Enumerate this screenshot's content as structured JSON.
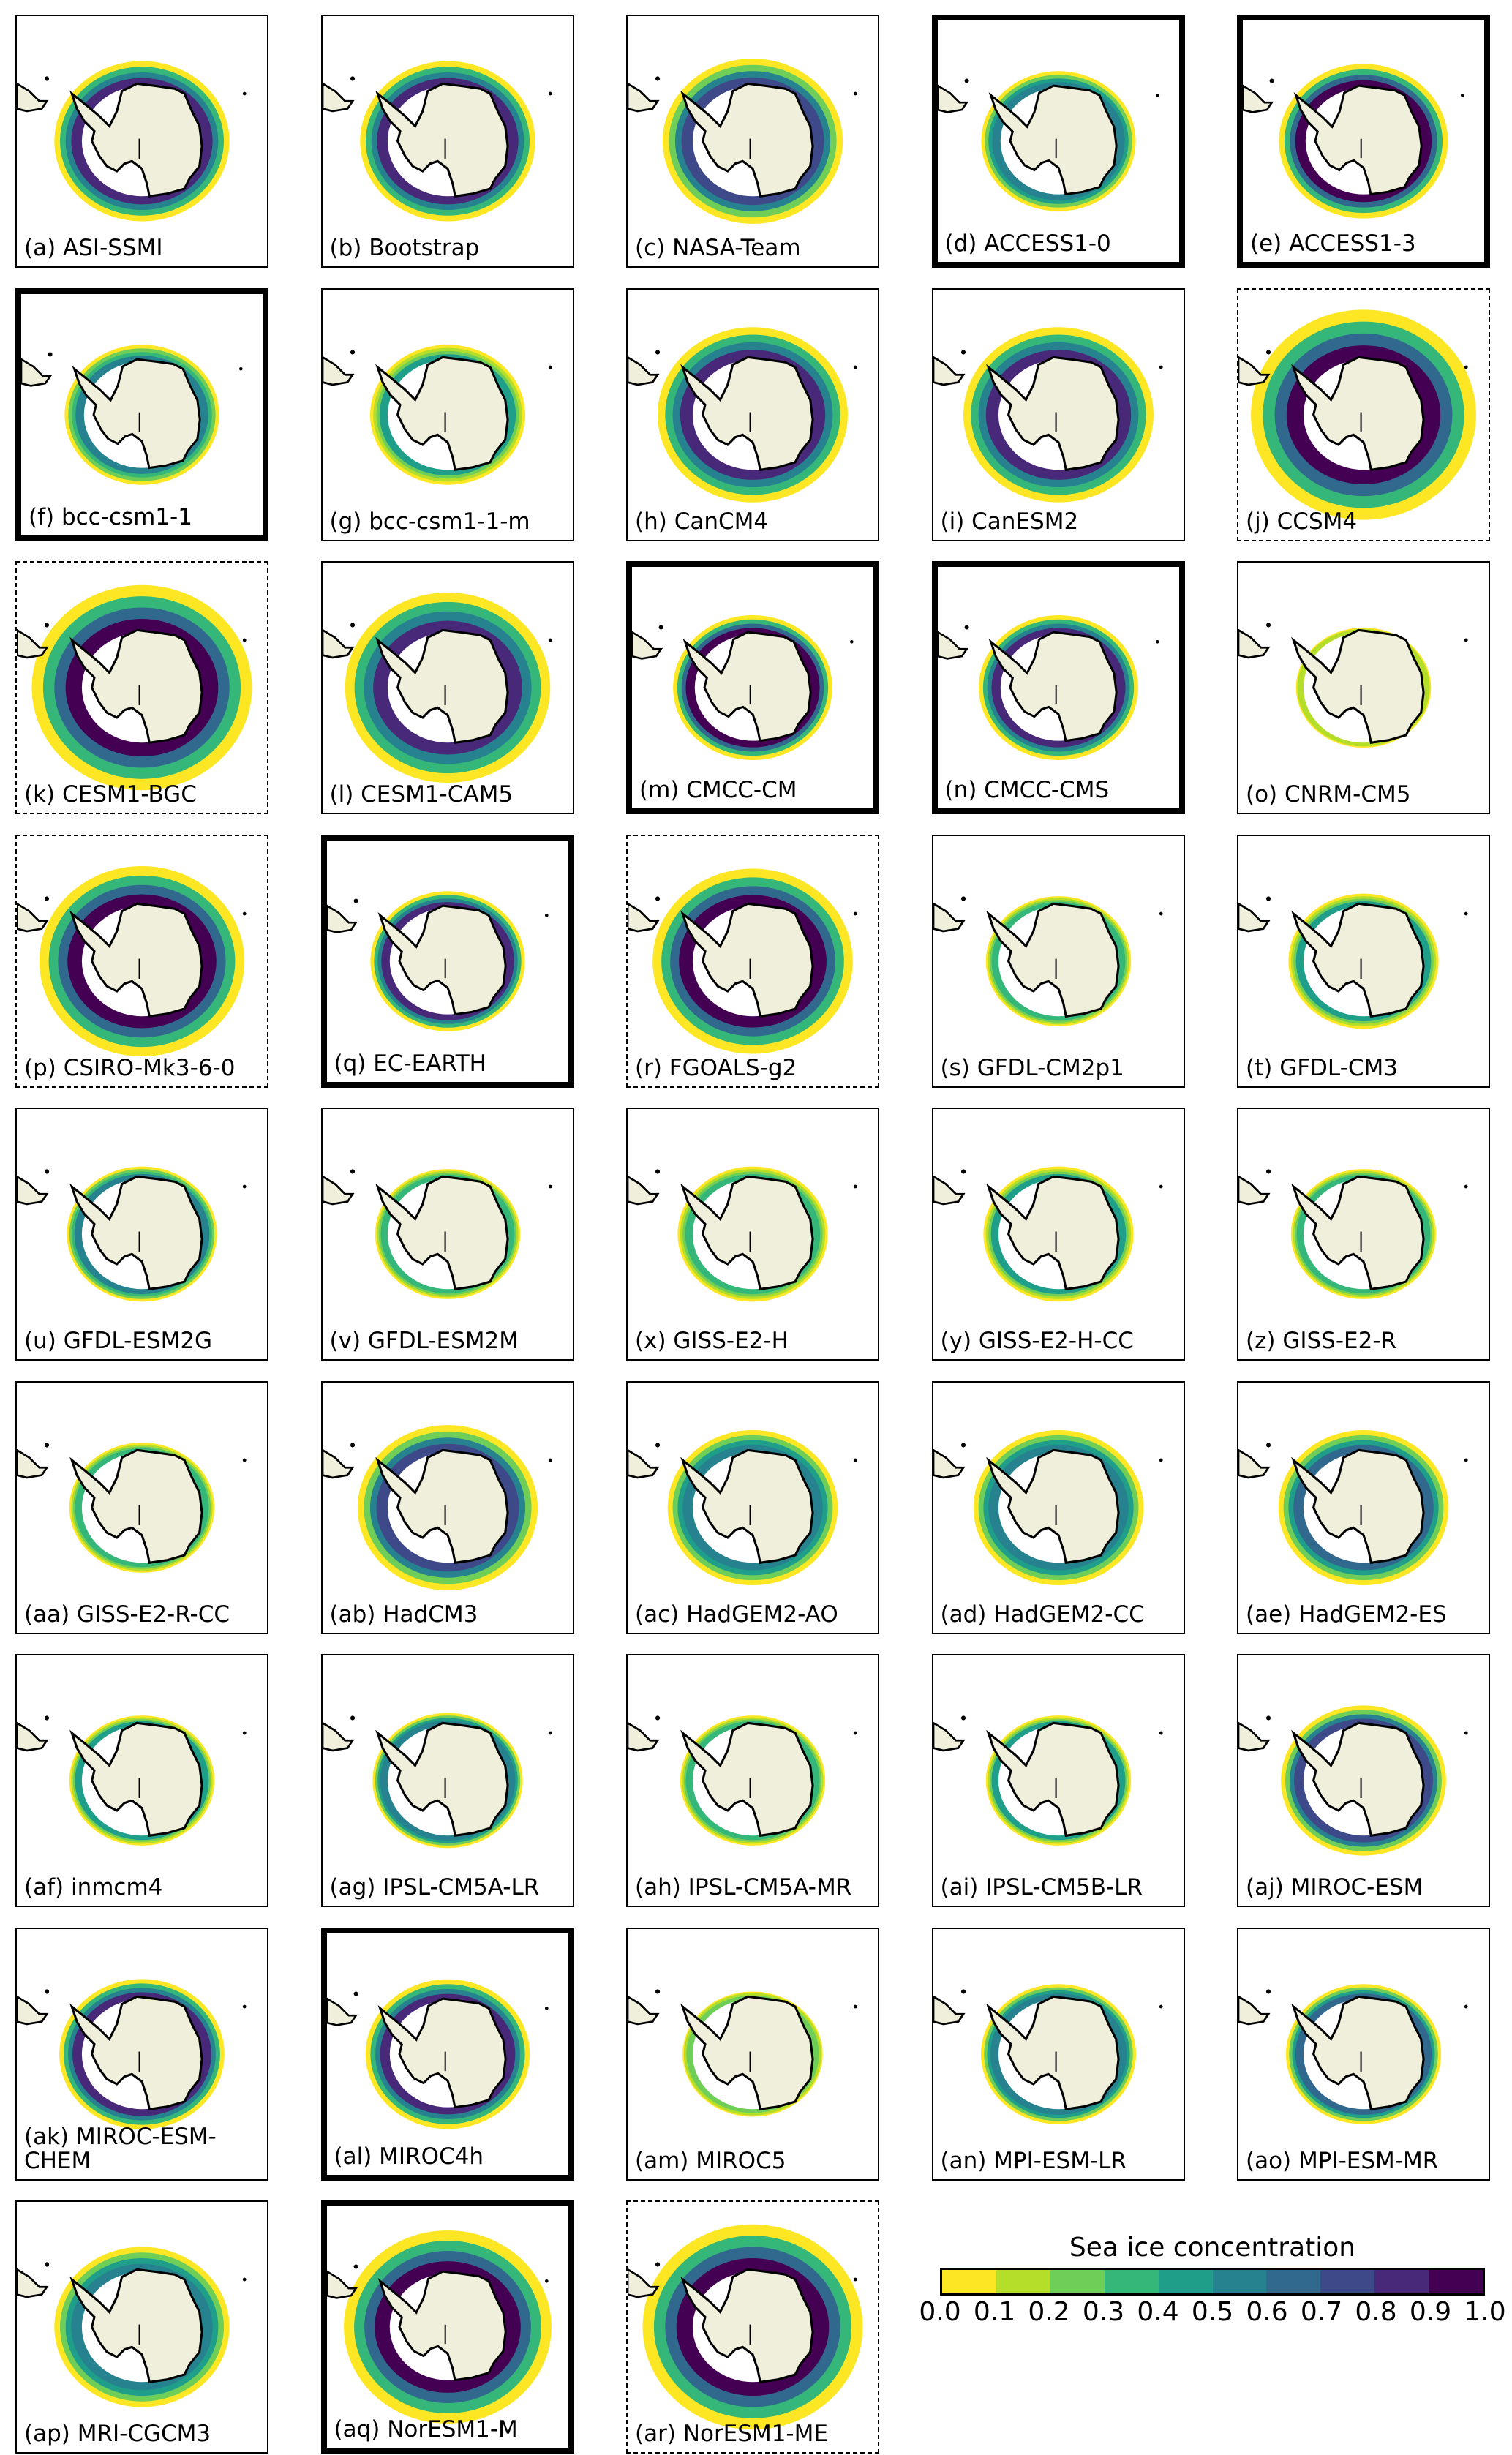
{
  "panels": [
    {
      "label": "(a) ASI-SSMI",
      "border": "normal"
    },
    {
      "label": "(b) Bootstrap",
      "border": "normal"
    },
    {
      "label": "(c) NASA-Team",
      "border": "normal"
    },
    {
      "label": "(d) ACCESS1-0",
      "border": "thick"
    },
    {
      "label": "(e) ACCESS1-3",
      "border": "thick"
    },
    {
      "label": "(f) bcc-csm1-1",
      "border": "thick"
    },
    {
      "label": "(g) bcc-csm1-1-m",
      "border": "normal"
    },
    {
      "label": "(h) CanCM4",
      "border": "normal"
    },
    {
      "label": "(i) CanESM2",
      "border": "normal"
    },
    {
      "label": "(j) CCSM4",
      "border": "dashed"
    },
    {
      "label": "(k) CESM1-BGC",
      "border": "dashed"
    },
    {
      "label": "(l) CESM1-CAM5",
      "border": "normal"
    },
    {
      "label": "(m) CMCC-CM",
      "border": "thick"
    },
    {
      "label": "(n) CMCC-CMS",
      "border": "thick"
    },
    {
      "label": "(o) CNRM-CM5",
      "border": "normal"
    },
    {
      "label": "(p) CSIRO-Mk3-6-0",
      "border": "dashed"
    },
    {
      "label": "(q) EC-EARTH",
      "border": "thick"
    },
    {
      "label": "(r) FGOALS-g2",
      "border": "dashed"
    },
    {
      "label": "(s) GFDL-CM2p1",
      "border": "normal"
    },
    {
      "label": "(t) GFDL-CM3",
      "border": "normal"
    },
    {
      "label": "(u) GFDL-ESM2G",
      "border": "normal"
    },
    {
      "label": "(v) GFDL-ESM2M",
      "border": "normal"
    },
    {
      "label": "(x) GISS-E2-H",
      "border": "normal"
    },
    {
      "label": "(y) GISS-E2-H-CC",
      "border": "normal"
    },
    {
      "label": "(z) GISS-E2-R",
      "border": "normal"
    },
    {
      "label": "(aa) GISS-E2-R-CC",
      "border": "normal"
    },
    {
      "label": "(ab) HadCM3",
      "border": "normal"
    },
    {
      "label": "(ac) HadGEM2-AO",
      "border": "normal"
    },
    {
      "label": "(ad) HadGEM2-CC",
      "border": "normal"
    },
    {
      "label": "(ae) HadGEM2-ES",
      "border": "normal"
    },
    {
      "label": "(af) inmcm4",
      "border": "normal"
    },
    {
      "label": "(ag) IPSL-CM5A-LR",
      "border": "normal"
    },
    {
      "label": "(ah) IPSL-CM5A-MR",
      "border": "normal"
    },
    {
      "label": "(ai) IPSL-CM5B-LR",
      "border": "normal"
    },
    {
      "label": "(aj) MIROC-ESM",
      "border": "normal"
    },
    {
      "label": "(ak) MIROC-ESM-CHEM",
      "border": "normal"
    },
    {
      "label": "(al) MIROC4h",
      "border": "thick"
    },
    {
      "label": "(am) MIROC5",
      "border": "normal"
    },
    {
      "label": "(an) MPI-ESM-LR",
      "border": "normal"
    },
    {
      "label": "(ao) MPI-ESM-MR",
      "border": "normal"
    },
    {
      "label": "(ap) MRI-CGCM3",
      "border": "normal"
    },
    {
      "label": "(aq) NorESM1-M",
      "border": "thick"
    },
    {
      "label": "(ar) NorESM1-ME",
      "border": "dashed"
    }
  ],
  "colorbar": {
    "title": "Sea ice concentration",
    "ticks": [
      "0.0",
      "0.1",
      "0.2",
      "0.3",
      "0.4",
      "0.5",
      "0.6",
      "0.7",
      "0.8",
      "0.9",
      "1.0"
    ],
    "colors": [
      "#fde725",
      "#b5de2b",
      "#6ece58",
      "#35b779",
      "#1f9e89",
      "#26828e",
      "#31688e",
      "#3e4989",
      "#482878",
      "#440154"
    ],
    "range": [
      0.0,
      1.0
    ]
  },
  "colors": {
    "land": "#efefdb",
    "coastline": "#000000"
  }
}
